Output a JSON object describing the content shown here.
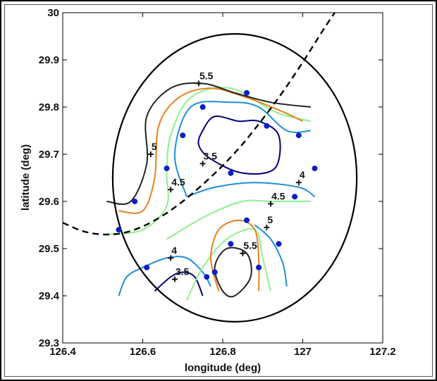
{
  "chart_data": {
    "type": "contour",
    "xlabel": "longitude (deg)",
    "ylabel": "latitude (deg)",
    "xlim": [
      126.4,
      127.2
    ],
    "ylim": [
      29.3,
      30.0
    ],
    "xticks": [
      126.4,
      126.6,
      126.8,
      127,
      127.2
    ],
    "xtick_labels": [
      "126.4",
      "126.6",
      "126.8",
      "127",
      "127.2"
    ],
    "yticks": [
      29.3,
      29.4,
      29.5,
      29.6,
      29.7,
      29.8,
      29.9,
      30.0
    ],
    "ytick_labels": [
      "29.3",
      "29.4",
      "29.5",
      "29.6",
      "29.7",
      "29.8",
      "29.9",
      "30"
    ],
    "grid": false,
    "colors": {
      "level_3_5": "#00007a",
      "level_4": "#1e8fd6",
      "level_4_5": "#8ef08e",
      "level_5": "#e8801e",
      "level_5_5": "#222222",
      "stations": "#0a1fc8",
      "boundary": "#000000"
    },
    "stations": [
      [
        126.86,
        29.83
      ],
      [
        126.75,
        29.8
      ],
      [
        126.91,
        29.76
      ],
      [
        126.7,
        29.74
      ],
      [
        126.99,
        29.74
      ],
      [
        126.66,
        29.67
      ],
      [
        126.82,
        29.66
      ],
      [
        127.03,
        29.67
      ],
      [
        126.58,
        29.6
      ],
      [
        126.98,
        29.61
      ],
      [
        126.86,
        29.56
      ],
      [
        126.54,
        29.54
      ],
      [
        126.82,
        29.51
      ],
      [
        126.94,
        29.51
      ],
      [
        126.61,
        29.46
      ],
      [
        126.89,
        29.46
      ],
      [
        126.78,
        29.45
      ],
      [
        126.76,
        29.44
      ]
    ],
    "circle": {
      "center": [
        126.83,
        29.65
      ],
      "radius_deg": 0.305
    },
    "dashed_arc": [
      [
        126.4,
        29.555
      ],
      [
        126.45,
        29.537
      ],
      [
        126.5,
        29.53
      ],
      [
        126.55,
        29.533
      ],
      [
        126.6,
        29.547
      ],
      [
        126.65,
        29.57
      ],
      [
        126.7,
        29.6
      ],
      [
        126.75,
        29.636
      ],
      [
        126.8,
        29.676
      ],
      [
        126.85,
        29.722
      ],
      [
        126.9,
        29.775
      ],
      [
        126.95,
        29.832
      ],
      [
        127.0,
        29.895
      ],
      [
        127.05,
        29.962
      ],
      [
        127.08,
        30.0
      ]
    ],
    "contours": [
      {
        "level": "3.5",
        "color": "#00007a",
        "closed": true,
        "points": [
          [
            126.75,
            29.75
          ],
          [
            126.78,
            29.78
          ],
          [
            126.84,
            29.77
          ],
          [
            126.89,
            29.77
          ],
          [
            126.94,
            29.74
          ],
          [
            126.93,
            29.67
          ],
          [
            126.85,
            29.66
          ],
          [
            126.77,
            29.69
          ],
          [
            126.74,
            29.72
          ]
        ]
      },
      {
        "level": "3.5",
        "color": "#00007a",
        "closed": false,
        "points": [
          [
            126.63,
            29.41
          ],
          [
            126.67,
            29.44
          ],
          [
            126.7,
            29.45
          ],
          [
            126.73,
            29.44
          ],
          [
            126.75,
            29.4
          ]
        ]
      },
      {
        "level": "4",
        "color": "#1e8fd6",
        "closed": false,
        "points": [
          [
            126.71,
            29.61
          ],
          [
            126.68,
            29.7
          ],
          [
            126.72,
            29.8
          ],
          [
            126.82,
            29.81
          ],
          [
            126.89,
            29.8
          ],
          [
            126.96,
            29.75
          ],
          [
            127.02,
            29.75
          ]
        ]
      },
      {
        "level": "4",
        "color": "#1e8fd6",
        "closed": false,
        "points": [
          [
            126.71,
            29.61
          ],
          [
            126.78,
            29.63
          ],
          [
            126.88,
            29.64
          ],
          [
            126.99,
            29.63
          ],
          [
            127.03,
            29.61
          ]
        ]
      },
      {
        "level": "4",
        "color": "#1e8fd6",
        "closed": false,
        "points": [
          [
            126.54,
            29.4
          ],
          [
            126.56,
            29.44
          ],
          [
            126.6,
            29.46
          ],
          [
            126.66,
            29.48
          ],
          [
            126.71,
            29.48
          ],
          [
            126.75,
            29.45
          ],
          [
            126.77,
            29.42
          ]
        ]
      },
      {
        "level": "4",
        "color": "#1e8fd6",
        "closed": false,
        "points": [
          [
            126.88,
            29.55
          ],
          [
            126.92,
            29.52
          ],
          [
            126.95,
            29.47
          ],
          [
            126.96,
            29.42
          ]
        ]
      },
      {
        "level": "4.5",
        "color": "#8ef08e",
        "closed": false,
        "points": [
          [
            126.51,
            29.53
          ],
          [
            126.6,
            29.54
          ],
          [
            126.66,
            29.59
          ],
          [
            126.66,
            29.66
          ],
          [
            126.67,
            29.74
          ],
          [
            126.72,
            29.82
          ],
          [
            126.82,
            29.84
          ],
          [
            126.93,
            29.79
          ],
          [
            127.02,
            29.77
          ]
        ]
      },
      {
        "level": "4.5",
        "color": "#8ef08e",
        "closed": false,
        "points": [
          [
            126.66,
            29.52
          ],
          [
            126.76,
            29.57
          ],
          [
            126.85,
            29.6
          ],
          [
            126.92,
            29.6
          ],
          [
            127.02,
            29.6
          ]
        ]
      },
      {
        "level": "4.5",
        "color": "#8ef08e",
        "closed": false,
        "points": [
          [
            126.71,
            29.39
          ],
          [
            126.75,
            29.46
          ],
          [
            126.81,
            29.52
          ],
          [
            126.88,
            29.54
          ],
          [
            126.9,
            29.48
          ],
          [
            126.92,
            29.41
          ]
        ]
      },
      {
        "level": "5",
        "color": "#e8801e",
        "closed": false,
        "points": [
          [
            126.54,
            29.58
          ],
          [
            126.6,
            29.58
          ],
          [
            126.63,
            29.65
          ],
          [
            126.64,
            29.76
          ],
          [
            126.69,
            29.82
          ],
          [
            126.77,
            29.84
          ],
          [
            126.86,
            29.82
          ],
          [
            126.95,
            29.79
          ],
          [
            127.0,
            29.77
          ]
        ]
      },
      {
        "level": "5",
        "color": "#e8801e",
        "closed": false,
        "points": [
          [
            126.79,
            29.41
          ],
          [
            126.77,
            29.48
          ],
          [
            126.79,
            29.54
          ],
          [
            126.84,
            29.56
          ],
          [
            126.88,
            29.54
          ],
          [
            126.89,
            29.48
          ],
          [
            126.89,
            29.41
          ]
        ]
      },
      {
        "level": "5.5",
        "color": "#222222",
        "closed": false,
        "points": [
          [
            126.51,
            29.6
          ],
          [
            126.57,
            29.6
          ],
          [
            126.61,
            29.68
          ],
          [
            126.61,
            29.78
          ],
          [
            126.67,
            29.84
          ],
          [
            126.75,
            29.85
          ],
          [
            126.83,
            29.83
          ],
          [
            126.92,
            29.81
          ],
          [
            127.02,
            29.8
          ]
        ]
      },
      {
        "level": "5.5",
        "color": "#222222",
        "closed": true,
        "points": [
          [
            126.8,
            29.41
          ],
          [
            126.78,
            29.46
          ],
          [
            126.81,
            29.5
          ],
          [
            126.86,
            29.49
          ],
          [
            126.87,
            29.44
          ],
          [
            126.83,
            29.4
          ]
        ]
      }
    ],
    "contour_labels": [
      {
        "text": "5.5",
        "at": [
          126.74,
          29.85
        ]
      },
      {
        "text": "5",
        "at": [
          126.62,
          29.7
        ]
      },
      {
        "text": "3.5",
        "at": [
          126.75,
          29.68
        ]
      },
      {
        "text": "4.5",
        "at": [
          126.67,
          29.625
        ]
      },
      {
        "text": "4",
        "at": [
          126.99,
          29.64
        ]
      },
      {
        "text": "4.5",
        "at": [
          126.92,
          29.595
        ]
      },
      {
        "text": "5",
        "at": [
          126.91,
          29.545
        ]
      },
      {
        "text": "5.5",
        "at": [
          126.85,
          29.49
        ]
      },
      {
        "text": "4",
        "at": [
          126.67,
          29.48
        ]
      },
      {
        "text": "3.5",
        "at": [
          126.68,
          29.435
        ]
      }
    ]
  }
}
